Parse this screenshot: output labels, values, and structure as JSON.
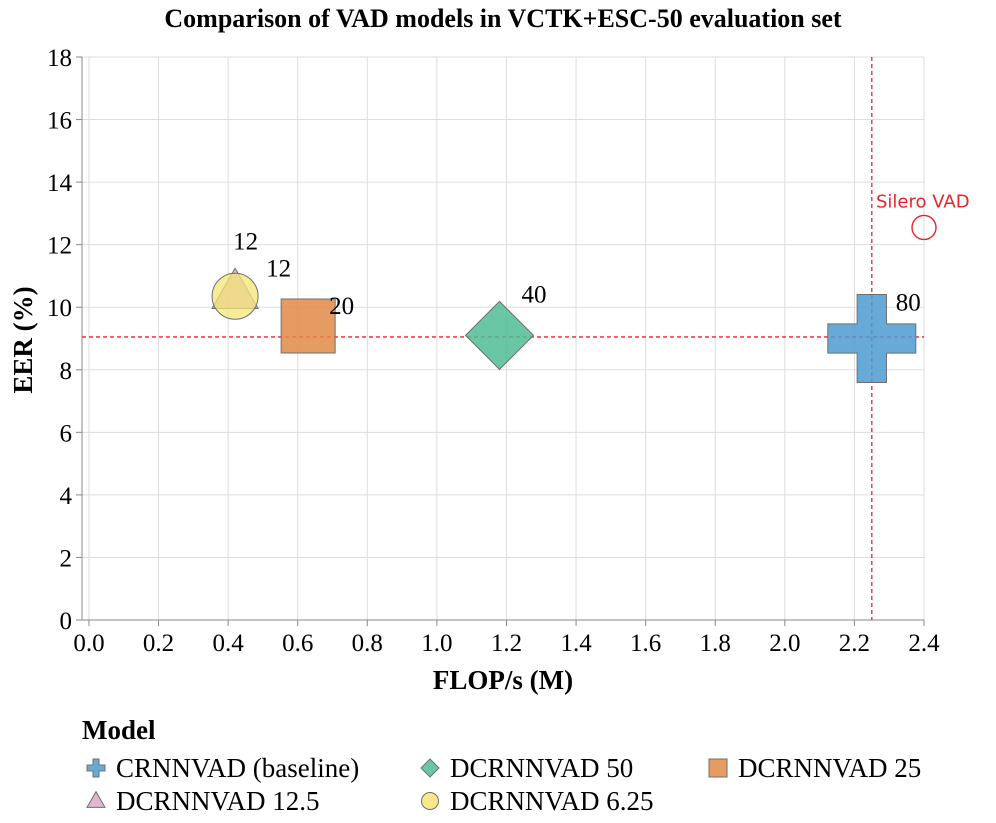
{
  "chart_data": {
    "type": "scatter",
    "title": "Comparison of VAD models in VCTK+ESC-50 evaluation set",
    "xlabel": "FLOP/s (M)",
    "ylabel": "EER (%)",
    "xlim": [
      -0.02,
      2.4
    ],
    "ylim": [
      0,
      18
    ],
    "xticks": [
      0.0,
      0.2,
      0.4,
      0.6,
      0.8,
      1.0,
      1.2,
      1.4,
      1.6,
      1.8,
      2.0,
      2.2,
      2.4
    ],
    "xtick_labels": [
      "0.0",
      "0.2",
      "0.4",
      "0.6",
      "0.8",
      "1.0",
      "1.2",
      "1.4",
      "1.6",
      "1.8",
      "2.0",
      "2.2",
      "2.4"
    ],
    "yticks": [
      0,
      2,
      4,
      6,
      8,
      10,
      12,
      14,
      16,
      18
    ],
    "ytick_labels": [
      "0",
      "2",
      "4",
      "6",
      "8",
      "10",
      "12",
      "14",
      "16",
      "18"
    ],
    "grid": true,
    "reference_lines": {
      "x": 2.25,
      "y": 9.05,
      "color": "#e8262a"
    },
    "series": [
      {
        "name": "CRNNVAD (baseline)",
        "shape": "cross",
        "color": "#4c9bd0",
        "x": 2.25,
        "y": 9.0,
        "size_value": 80,
        "label": "80"
      },
      {
        "name": "DCRNNVAD 50",
        "shape": "diamond",
        "color": "#4fbd95",
        "x": 1.18,
        "y": 9.1,
        "size_value": 40,
        "label": "40"
      },
      {
        "name": "DCRNNVAD 25",
        "shape": "square",
        "color": "#e08a45",
        "x": 0.63,
        "y": 9.4,
        "size_value": 20,
        "label": "20"
      },
      {
        "name": "DCRNNVAD 12.5",
        "shape": "triangle",
        "color": "#d9a8c8",
        "x": 0.42,
        "y": 10.4,
        "size_value": 12,
        "label": "12"
      },
      {
        "name": "DCRNNVAD 6.25",
        "shape": "circle",
        "color": "#f4e574",
        "x": 0.42,
        "y": 10.35,
        "size_value": 12,
        "label": "12"
      }
    ],
    "reference_model": {
      "name": "Silero VAD",
      "x": 2.4,
      "y": 12.55,
      "color": "#e8262a",
      "shape": "open-circle"
    },
    "legend": {
      "title": "Model",
      "position": "bottom-left"
    }
  }
}
